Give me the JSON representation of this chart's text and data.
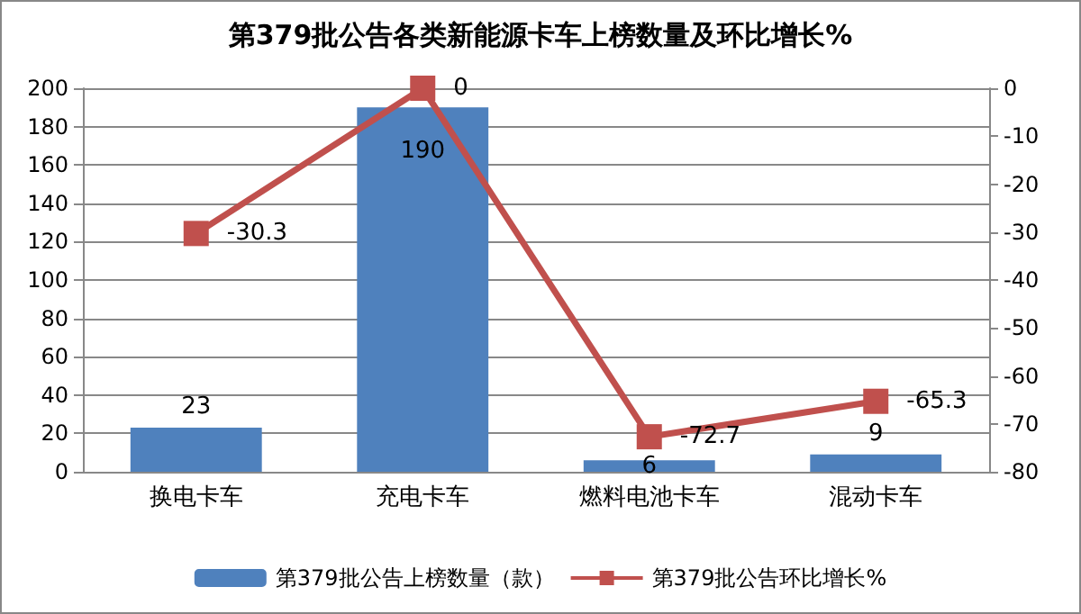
{
  "chart_data": {
    "type": "bar",
    "title": "第379批公告各类新能源卡车上榜数量及环比增长%",
    "categories": [
      "换电卡车",
      "充电卡车",
      "燃料电池卡车",
      "混动卡车"
    ],
    "series": [
      {
        "name": "第379批公告上榜数量（款）",
        "color": "#4f81bd",
        "values": [
          23,
          190,
          6,
          9
        ]
      },
      {
        "name": "第379批公告环比增长%",
        "type": "line",
        "axis": "y2",
        "color": "#c0504d",
        "values": [
          -30.3,
          0,
          -72.7,
          -65.3
        ]
      }
    ],
    "ylim": [
      0,
      200
    ],
    "yticks": [
      0,
      20,
      40,
      60,
      80,
      100,
      120,
      140,
      160,
      180,
      200
    ],
    "y2lim": [
      -80,
      0
    ],
    "y2ticks": [
      -80,
      -70,
      -60,
      -50,
      -40,
      -30,
      -20,
      -10,
      0
    ],
    "grid": "y",
    "legend": "bottom",
    "marker": "square",
    "data_labels": true
  }
}
